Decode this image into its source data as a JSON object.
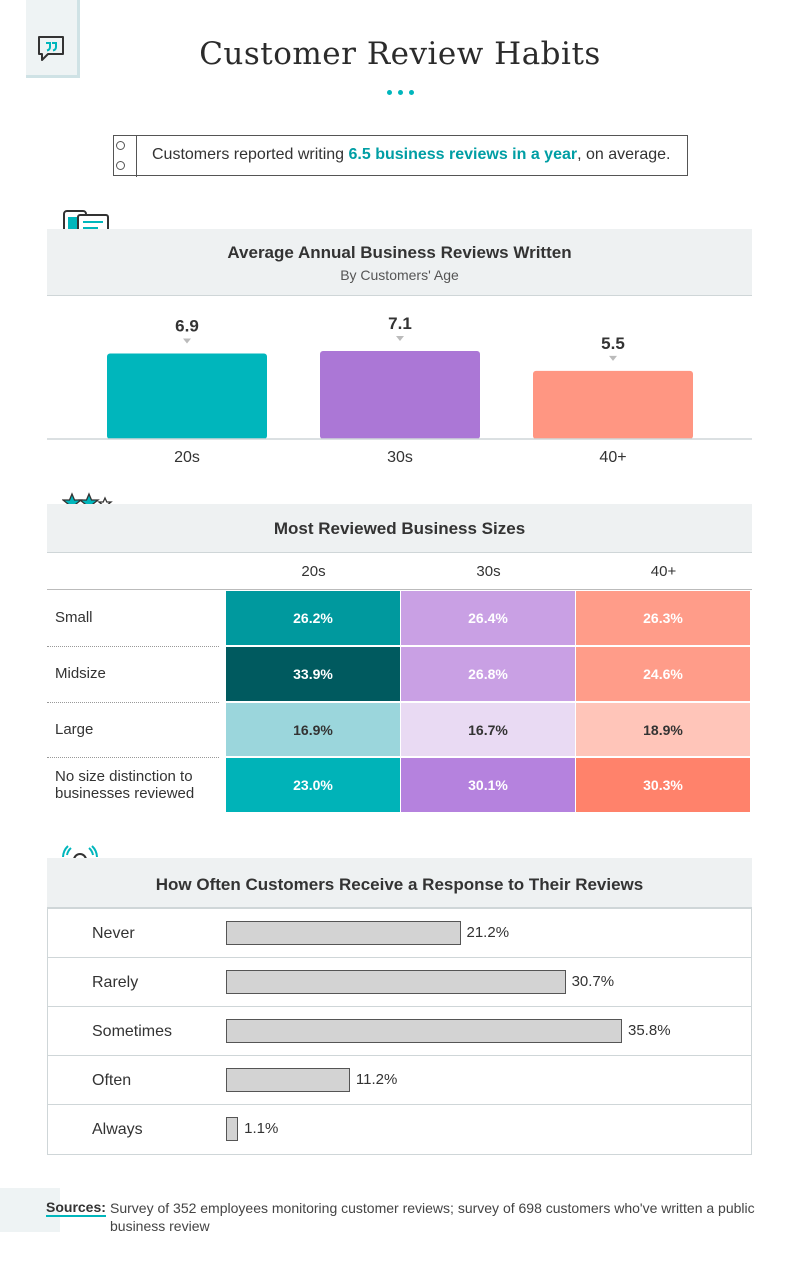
{
  "header": {
    "title": "Customer Review Habits"
  },
  "callout": {
    "prefix": "Customers reported writing ",
    "highlight": "6.5 business reviews in a year",
    "suffix": ", on average."
  },
  "colors": {
    "teal": "#00b6bc",
    "purple": "#ab77d6",
    "salmon": "#ff9682"
  },
  "section1": {
    "title": "Average Annual Business Reviews Written",
    "subtitle": "By Customers' Age"
  },
  "section2": {
    "title": "Most Reviewed Business Sizes"
  },
  "section3": {
    "title": "How Often Customers Receive a Response to Their Reviews"
  },
  "chart_data": [
    {
      "type": "bar",
      "title": "Average Annual Business Reviews Written",
      "subtitle": "By Customers' Age",
      "categories": [
        "20s",
        "30s",
        "40+"
      ],
      "values": [
        6.9,
        7.1,
        5.5
      ],
      "value_labels": [
        "6.9",
        "7.1",
        "5.5"
      ],
      "colors": [
        "#00b6bc",
        "#ab77d6",
        "#ff9682"
      ],
      "ylim": [
        0,
        7.1
      ],
      "grid": false,
      "legend": "none"
    },
    {
      "type": "table",
      "title": "Most Reviewed Business Sizes",
      "columns": [
        "20s",
        "30s",
        "40+"
      ],
      "rows": [
        {
          "label": "Small",
          "values": [
            "26.2%",
            "26.4%",
            "26.3%"
          ]
        },
        {
          "label": "Midsize",
          "values": [
            "33.9%",
            "26.8%",
            "24.6%"
          ]
        },
        {
          "label": "Large",
          "values": [
            "16.9%",
            "16.7%",
            "18.9%"
          ]
        },
        {
          "label": "No size distinction to businesses reviewed",
          "values": [
            "23.0%",
            "30.1%",
            "30.3%"
          ]
        }
      ],
      "cell_colors": [
        [
          "#00999e",
          "#c9a0e4",
          "#ff9c89"
        ],
        [
          "#005a5f",
          "#c9a0e4",
          "#ff9c89"
        ],
        [
          "#9bd6dc",
          "#e9daf3",
          "#ffc5b9"
        ],
        [
          "#00b3b8",
          "#b582de",
          "#ff826b"
        ]
      ],
      "cell_text_colors": [
        [
          "#ffffff",
          "#ffffff",
          "#ffffff"
        ],
        [
          "#ffffff",
          "#ffffff",
          "#ffffff"
        ],
        [
          "#333333",
          "#333333",
          "#333333"
        ],
        [
          "#ffffff",
          "#ffffff",
          "#ffffff"
        ]
      ]
    },
    {
      "type": "bar",
      "orientation": "horizontal",
      "title": "How Often Customers Receive a Response to Their Reviews",
      "categories": [
        "Never",
        "Rarely",
        "Sometimes",
        "Often",
        "Always"
      ],
      "values": [
        21.2,
        30.7,
        35.8,
        11.2,
        1.1
      ],
      "value_labels": [
        "21.2%",
        "30.7%",
        "35.8%",
        "11.2%",
        "1.1%"
      ],
      "xlim": [
        0,
        35.8
      ],
      "grid": false,
      "legend": "none"
    }
  ],
  "sources": {
    "label": "Sources:",
    "text": "Survey of 352 employees monitoring customer reviews; survey of 698 customers who've written a public business review"
  }
}
